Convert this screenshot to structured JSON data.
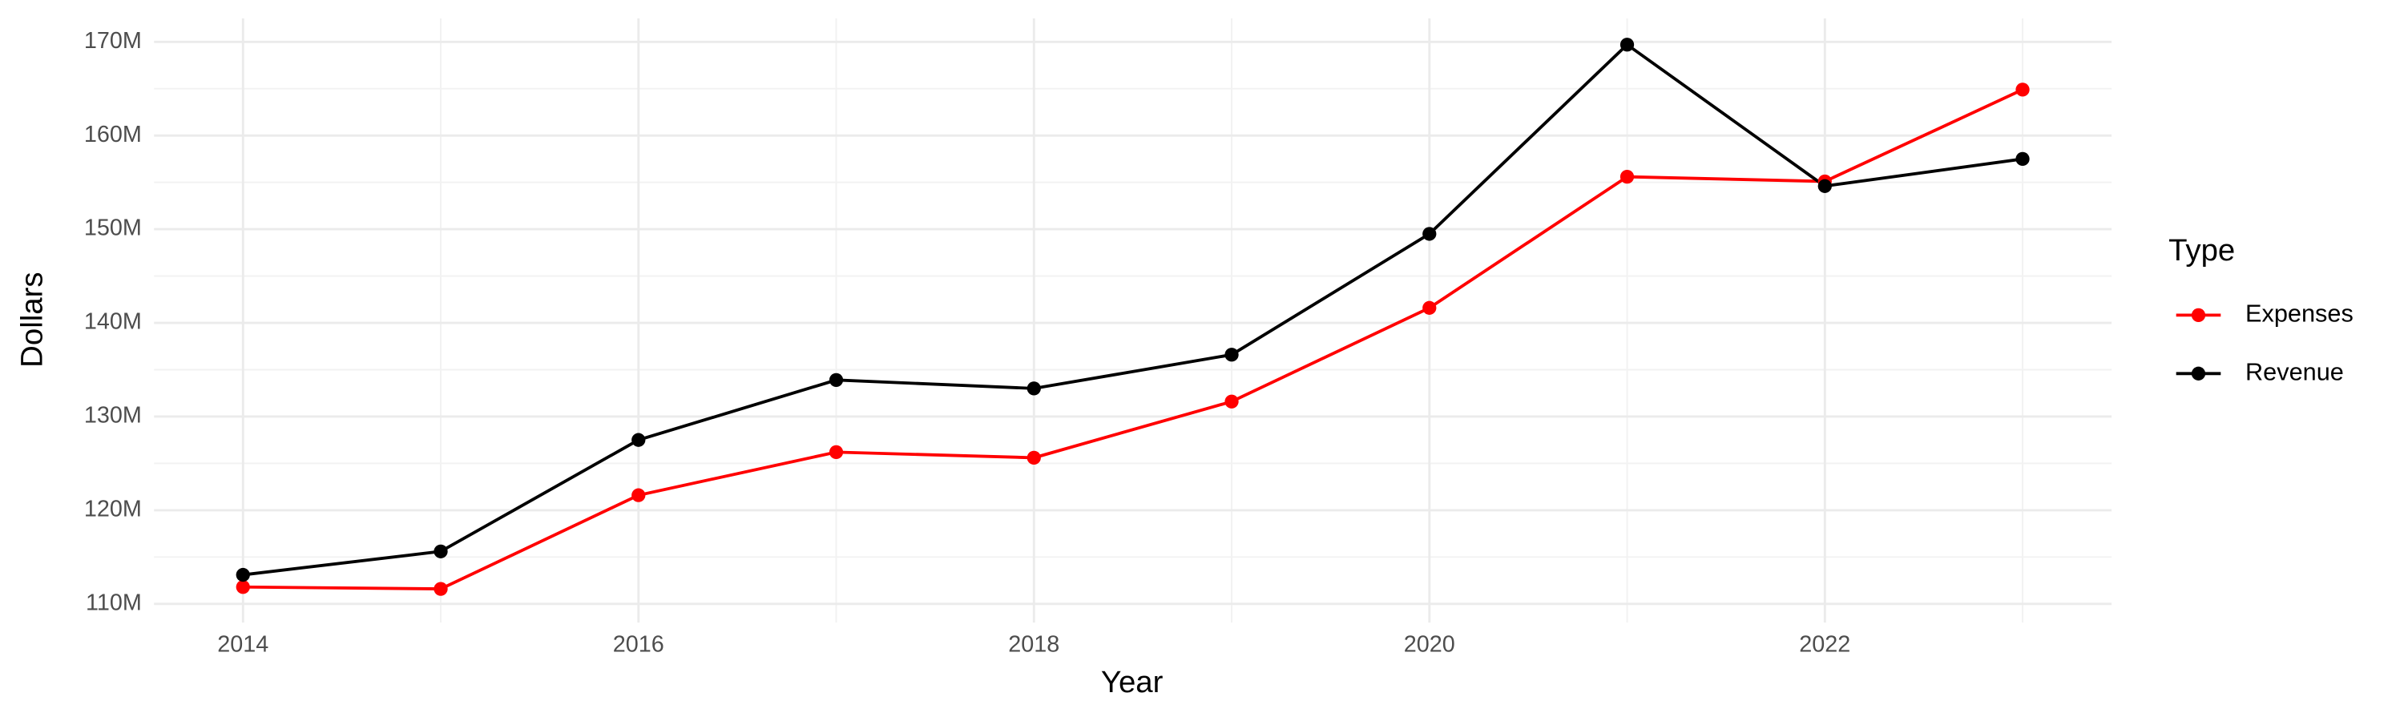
{
  "chart_data": {
    "type": "line",
    "x_label": "Year",
    "y_label": "Dollars",
    "legend_title": "Type",
    "x": [
      2014,
      2015,
      2016,
      2017,
      2018,
      2019,
      2020,
      2021,
      2022,
      2023
    ],
    "series": [
      {
        "name": "Expenses",
        "color": "#ff0000",
        "values": [
          111800000,
          111600000,
          121600000,
          126200000,
          125600000,
          131600000,
          141600000,
          155600000,
          155100000,
          164900000
        ]
      },
      {
        "name": "Revenue",
        "color": "#000000",
        "values": [
          113100000,
          115600000,
          127500000,
          133900000,
          133000000,
          136600000,
          149500000,
          169700000,
          154600000,
          157500000
        ]
      }
    ],
    "xlim": [
      2013.55,
      2023.45
    ],
    "xticks": [
      2014,
      2016,
      2018,
      2020,
      2022
    ],
    "ylim": [
      108000000,
      172500000
    ],
    "yticks": [
      {
        "value": 110000000,
        "label": "110M"
      },
      {
        "value": 120000000,
        "label": "120M"
      },
      {
        "value": 130000000,
        "label": "130M"
      },
      {
        "value": 140000000,
        "label": "140M"
      },
      {
        "value": 150000000,
        "label": "150M"
      },
      {
        "value": 160000000,
        "label": "160M"
      },
      {
        "value": 170000000,
        "label": "170M"
      }
    ],
    "grid": true,
    "legend_position": "right"
  }
}
